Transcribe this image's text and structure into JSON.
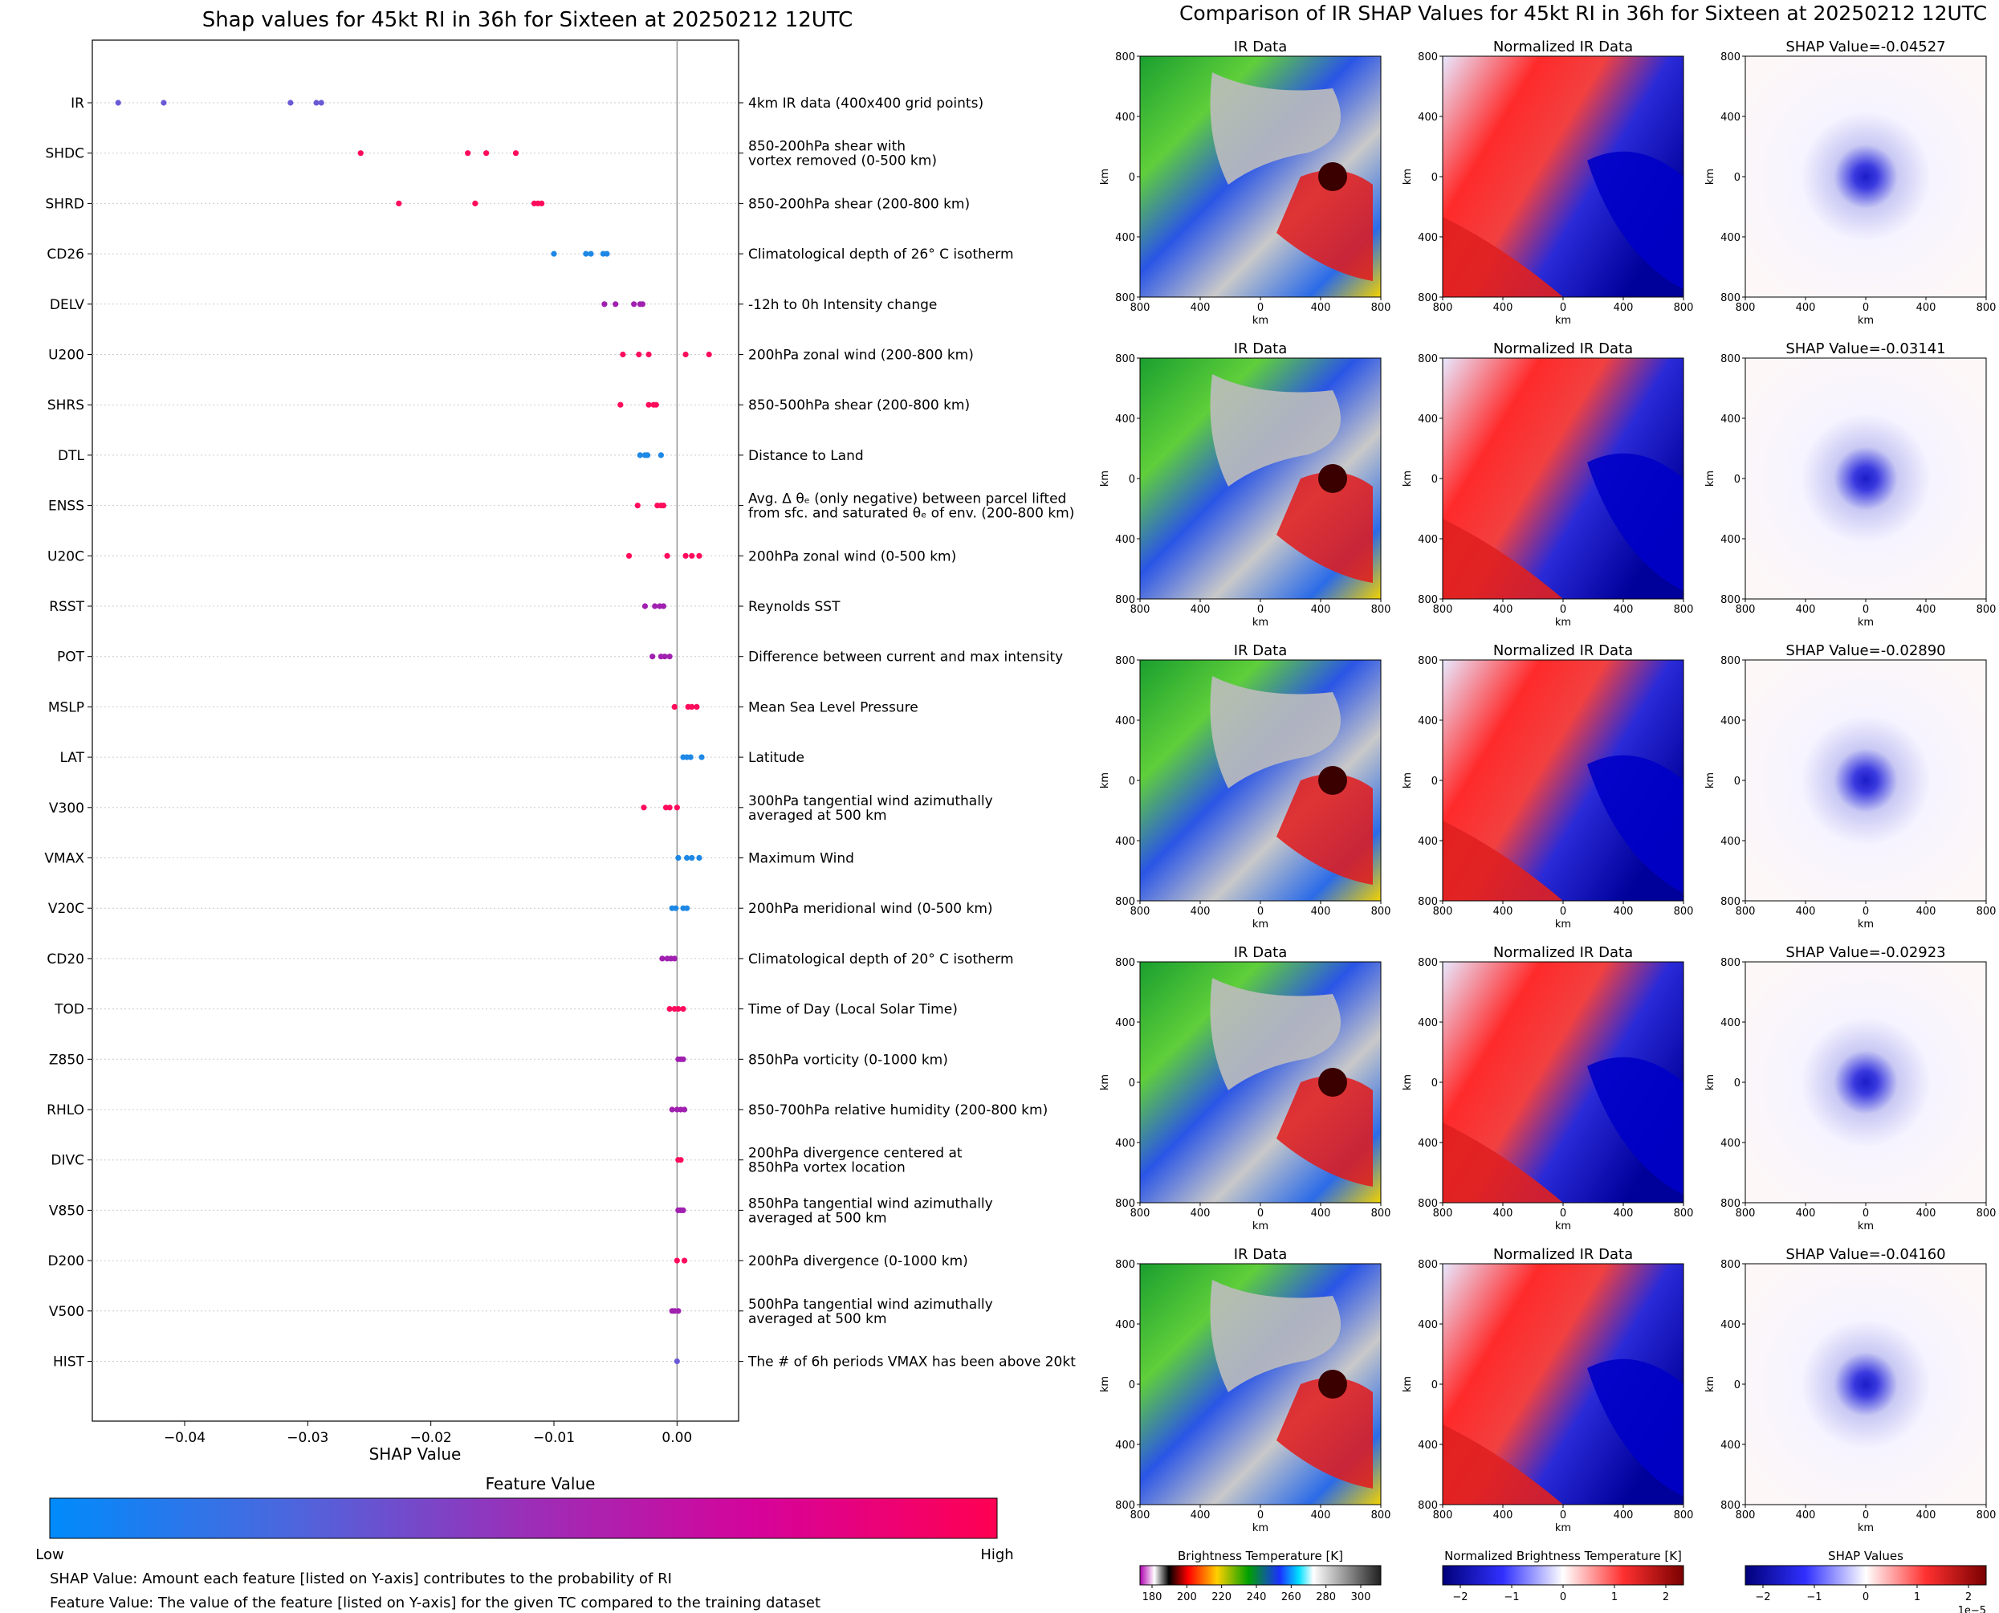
{
  "left_chart": {
    "chart_data": {
      "type": "scatter",
      "title": "Shap values for 45kt RI in 36h for Sixteen at 20250212 12UTC",
      "xlabel": "SHAP Value",
      "xlim": [
        -0.0475,
        0.005
      ],
      "xticks": [
        -0.04,
        -0.03,
        -0.02,
        -0.01,
        0.0
      ],
      "xtick_labels": [
        "−0.04",
        "−0.03",
        "−0.02",
        "−0.01",
        "0.00"
      ],
      "features": [
        {
          "name": "IR",
          "description": [
            "4km IR data (400x400 grid points)"
          ],
          "values": [
            -0.0454,
            -0.0417,
            -0.0314,
            -0.0293,
            -0.0289
          ],
          "color": "#6a5ad6"
        },
        {
          "name": "SHDC",
          "description": [
            "850-200hPa shear with",
            "vortex removed (0-500 km)"
          ],
          "values": [
            -0.0257,
            -0.017,
            -0.0155,
            -0.0131
          ],
          "color": "#ff0b5c"
        },
        {
          "name": "SHRD",
          "description": [
            "850-200hPa shear (200-800 km)"
          ],
          "values": [
            -0.0226,
            -0.0164,
            -0.0116,
            -0.0113,
            -0.011
          ],
          "color": "#ff0b5c"
        },
        {
          "name": "CD26",
          "description": [
            "Climatological depth of 26° C isotherm"
          ],
          "values": [
            -0.01,
            -0.0074,
            -0.007,
            -0.006,
            -0.0057
          ],
          "color": "#1e88e5"
        },
        {
          "name": "DELV",
          "description": [
            "-12h to 0h Intensity change"
          ],
          "values": [
            -0.0059,
            -0.005,
            -0.0035,
            -0.003,
            -0.0028
          ],
          "color": "#a020b0"
        },
        {
          "name": "U200",
          "description": [
            "200hPa zonal wind (200-800 km)"
          ],
          "values": [
            -0.0044,
            -0.0031,
            -0.0023,
            0.0007,
            0.0026
          ],
          "color": "#ff0b5c"
        },
        {
          "name": "SHRS",
          "description": [
            "850-500hPa shear (200-800 km)"
          ],
          "values": [
            -0.0046,
            -0.0023,
            -0.0019,
            -0.0017
          ],
          "color": "#ff0b5c"
        },
        {
          "name": "DTL",
          "description": [
            "Distance to Land"
          ],
          "values": [
            -0.003,
            -0.0026,
            -0.0024,
            -0.0013
          ],
          "color": "#1e88e5"
        },
        {
          "name": "ENSS",
          "description": [
            "Avg. Δ θₑ (only negative) between parcel lifted",
            "from sfc. and saturated θₑ of env. (200-800 km)"
          ],
          "values": [
            -0.0032,
            -0.0016,
            -0.0013,
            -0.0011
          ],
          "color": "#ff0b5c"
        },
        {
          "name": "U20C",
          "description": [
            "200hPa zonal wind (0-500 km)"
          ],
          "values": [
            -0.0039,
            -0.0008,
            0.0007,
            0.0012,
            0.0018
          ],
          "color": "#ff0b5c"
        },
        {
          "name": "RSST",
          "description": [
            "Reynolds SST"
          ],
          "values": [
            -0.0026,
            -0.0018,
            -0.0014,
            -0.0011
          ],
          "color": "#a020b0"
        },
        {
          "name": "POT",
          "description": [
            "Difference between current and max intensity"
          ],
          "values": [
            -0.002,
            -0.0013,
            -0.001,
            -0.0006
          ],
          "color": "#a020b0"
        },
        {
          "name": "MSLP",
          "description": [
            "Mean Sea Level Pressure"
          ],
          "values": [
            -0.0002,
            0.0009,
            0.0012,
            0.0016
          ],
          "color": "#ff0b5c"
        },
        {
          "name": "LAT",
          "description": [
            "Latitude"
          ],
          "values": [
            0.0005,
            0.0008,
            0.0011,
            0.002
          ],
          "color": "#1e88e5"
        },
        {
          "name": "V300",
          "description": [
            "300hPa tangential wind azimuthally",
            "averaged at 500 km"
          ],
          "values": [
            -0.0027,
            -0.0009,
            -0.0006,
            0.0
          ],
          "color": "#ff0b5c"
        },
        {
          "name": "VMAX",
          "description": [
            "Maximum Wind"
          ],
          "values": [
            0.0001,
            0.0008,
            0.0012,
            0.0018
          ],
          "color": "#1e88e5"
        },
        {
          "name": "V20C",
          "description": [
            "200hPa meridional wind (0-500 km)"
          ],
          "values": [
            -0.0004,
            -0.0001,
            0.0005,
            0.0008
          ],
          "color": "#1e88e5"
        },
        {
          "name": "CD20",
          "description": [
            "Climatological depth of 20° C isotherm"
          ],
          "values": [
            -0.0012,
            -0.0008,
            -0.0005,
            -0.0002
          ],
          "color": "#a020b0"
        },
        {
          "name": "TOD",
          "description": [
            "Time of Day (Local Solar Time)"
          ],
          "values": [
            -0.0006,
            -0.0002,
            0.0001,
            0.0005
          ],
          "color": "#ff0b5c"
        },
        {
          "name": "Z850",
          "description": [
            "850hPa vorticity (0-1000 km)"
          ],
          "values": [
            0.0001,
            0.0003,
            0.0005
          ],
          "color": "#a020b0"
        },
        {
          "name": "RHLO",
          "description": [
            "850-700hPa relative humidity (200-800 km)"
          ],
          "values": [
            -0.0004,
            0.0,
            0.0003,
            0.0006
          ],
          "color": "#a020b0"
        },
        {
          "name": "DIVC",
          "description": [
            "200hPa divergence centered at",
            "850hPa vortex location"
          ],
          "values": [
            0.0001,
            0.0003
          ],
          "color": "#ff0b5c"
        },
        {
          "name": "V850",
          "description": [
            "850hPa tangential wind azimuthally",
            "averaged at 500 km"
          ],
          "values": [
            0.0001,
            0.0003,
            0.0005
          ],
          "color": "#a020b0"
        },
        {
          "name": "D200",
          "description": [
            "200hPa divergence (0-1000 km)"
          ],
          "values": [
            0.0,
            0.0006
          ],
          "color": "#ff0b5c"
        },
        {
          "name": "V500",
          "description": [
            "500hPa tangential wind azimuthally",
            "averaged at 500 km"
          ],
          "values": [
            -0.0004,
            -0.0002,
            0.0001
          ],
          "color": "#a020b0"
        },
        {
          "name": "HIST",
          "description": [
            "The # of 6h periods VMAX has been above 20kt"
          ],
          "values": [
            0.0
          ],
          "color": "#6a5ad6"
        }
      ]
    },
    "colorbar": {
      "title": "Feature Value",
      "low_label": "Low",
      "high_label": "High",
      "colors": [
        "#008bfb",
        "#4b67de",
        "#9a2fb8",
        "#d6039a",
        "#ff0052"
      ]
    },
    "footnotes": [
      "SHAP Value: Amount each feature [listed on Y-axis] contributes to the probability of RI",
      "Feature Value: The value of the feature [listed on Y-axis] for the given TC compared to the training dataset"
    ]
  },
  "right_panel": {
    "suptitle": "Comparison of IR SHAP Values for 45kt RI in 36h for Sixteen at 20250212 12UTC",
    "col_titles": [
      "IR Data",
      "Normalized IR Data"
    ],
    "shap_titles": [
      "SHAP Value=-0.04527",
      "SHAP Value=-0.03141",
      "SHAP Value=-0.02890",
      "SHAP Value=-0.02923",
      "SHAP Value=-0.04160"
    ],
    "axis_label": "km",
    "tick_labels": [
      "800",
      "400",
      "0",
      "400",
      "800"
    ],
    "colorbars": [
      {
        "title": "Brightness Temperature [K]",
        "ticks": [
          "180",
          "200",
          "220",
          "240",
          "260",
          "280",
          "300"
        ]
      },
      {
        "title": "Normalized Brightness Temperature [K]",
        "ticks": [
          "−2",
          "−1",
          "0",
          "1",
          "2"
        ]
      },
      {
        "title": "SHAP Values",
        "ticks": [
          "−2",
          "−1",
          "0",
          "1",
          "2"
        ],
        "offset": "1e−5"
      }
    ]
  }
}
